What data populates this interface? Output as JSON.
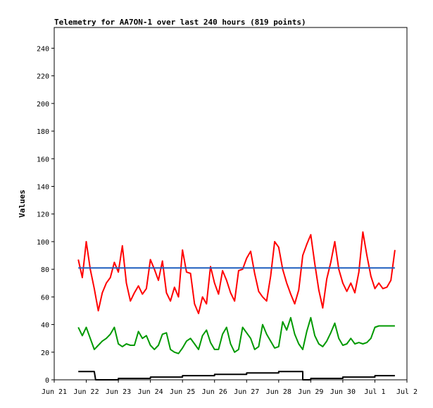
{
  "chart_data": {
    "type": "line",
    "title": "Telemetry for AA7ON-1 over last 240 hours (819 points)",
    "xlabel": "",
    "ylabel": "Values",
    "xlim": [
      "2024-06-21",
      "2024-07-02"
    ],
    "ylim": [
      0,
      255
    ],
    "x_ticks": [
      {
        "date": "2024-06-21",
        "label": "Jun 21"
      },
      {
        "date": "2024-06-22",
        "label": "Jun 22"
      },
      {
        "date": "2024-06-23",
        "label": "Jun 23"
      },
      {
        "date": "2024-06-24",
        "label": "Jun 24"
      },
      {
        "date": "2024-06-25",
        "label": "Jun 25"
      },
      {
        "date": "2024-06-26",
        "label": "Jun 26"
      },
      {
        "date": "2024-06-27",
        "label": "Jun 27"
      },
      {
        "date": "2024-06-28",
        "label": "Jun 28"
      },
      {
        "date": "2024-06-29",
        "label": "Jun 29"
      },
      {
        "date": "2024-06-30",
        "label": "Jun 30"
      },
      {
        "date": "2024-07-01",
        "label": "Jul 1"
      },
      {
        "date": "2024-07-02",
        "label": "Jul 2"
      }
    ],
    "y_ticks": [
      0,
      20,
      40,
      60,
      80,
      100,
      120,
      140,
      160,
      180,
      200,
      220,
      240
    ],
    "grid": false,
    "legend": "none",
    "series": [
      {
        "color": "#ff0000",
        "points": [
          [
            "2024-06-21T18:00",
            87
          ],
          [
            "2024-06-21T21:00",
            74
          ],
          [
            "2024-06-22T00:00",
            100
          ],
          [
            "2024-06-22T03:00",
            80
          ],
          [
            "2024-06-22T06:00",
            66
          ],
          [
            "2024-06-22T09:00",
            50
          ],
          [
            "2024-06-22T12:00",
            63
          ],
          [
            "2024-06-22T15:00",
            70
          ],
          [
            "2024-06-22T18:00",
            74
          ],
          [
            "2024-06-22T21:00",
            85
          ],
          [
            "2024-06-23T00:00",
            78
          ],
          [
            "2024-06-23T03:00",
            97
          ],
          [
            "2024-06-23T06:00",
            70
          ],
          [
            "2024-06-23T09:00",
            57
          ],
          [
            "2024-06-23T12:00",
            63
          ],
          [
            "2024-06-23T15:00",
            68
          ],
          [
            "2024-06-23T18:00",
            62
          ],
          [
            "2024-06-23T21:00",
            66
          ],
          [
            "2024-06-24T00:00",
            87
          ],
          [
            "2024-06-24T03:00",
            80
          ],
          [
            "2024-06-24T06:00",
            72
          ],
          [
            "2024-06-24T09:00",
            86
          ],
          [
            "2024-06-24T12:00",
            63
          ],
          [
            "2024-06-24T15:00",
            57
          ],
          [
            "2024-06-24T18:00",
            67
          ],
          [
            "2024-06-24T21:00",
            60
          ],
          [
            "2024-06-25T00:00",
            94
          ],
          [
            "2024-06-25T03:00",
            78
          ],
          [
            "2024-06-25T06:00",
            77
          ],
          [
            "2024-06-25T09:00",
            55
          ],
          [
            "2024-06-25T12:00",
            48
          ],
          [
            "2024-06-25T15:00",
            60
          ],
          [
            "2024-06-25T18:00",
            55
          ],
          [
            "2024-06-25T21:00",
            82
          ],
          [
            "2024-06-26T00:00",
            70
          ],
          [
            "2024-06-26T03:00",
            62
          ],
          [
            "2024-06-26T06:00",
            79
          ],
          [
            "2024-06-26T09:00",
            72
          ],
          [
            "2024-06-26T12:00",
            63
          ],
          [
            "2024-06-26T15:00",
            57
          ],
          [
            "2024-06-26T18:00",
            79
          ],
          [
            "2024-06-26T21:00",
            80
          ],
          [
            "2024-06-27T00:00",
            88
          ],
          [
            "2024-06-27T03:00",
            93
          ],
          [
            "2024-06-27T06:00",
            77
          ],
          [
            "2024-06-27T09:00",
            64
          ],
          [
            "2024-06-27T12:00",
            60
          ],
          [
            "2024-06-27T15:00",
            57
          ],
          [
            "2024-06-27T18:00",
            75
          ],
          [
            "2024-06-27T21:00",
            100
          ],
          [
            "2024-06-28T00:00",
            96
          ],
          [
            "2024-06-28T03:00",
            80
          ],
          [
            "2024-06-28T06:00",
            70
          ],
          [
            "2024-06-28T09:00",
            62
          ],
          [
            "2024-06-28T12:00",
            55
          ],
          [
            "2024-06-28T15:00",
            65
          ],
          [
            "2024-06-28T18:00",
            90
          ],
          [
            "2024-06-28T21:00",
            98
          ],
          [
            "2024-06-29T00:00",
            105
          ],
          [
            "2024-06-29T03:00",
            84
          ],
          [
            "2024-06-29T06:00",
            65
          ],
          [
            "2024-06-29T09:00",
            52
          ],
          [
            "2024-06-29T12:00",
            73
          ],
          [
            "2024-06-29T15:00",
            85
          ],
          [
            "2024-06-29T18:00",
            100
          ],
          [
            "2024-06-29T21:00",
            80
          ],
          [
            "2024-06-30T00:00",
            70
          ],
          [
            "2024-06-30T03:00",
            64
          ],
          [
            "2024-06-30T06:00",
            70
          ],
          [
            "2024-06-30T09:00",
            63
          ],
          [
            "2024-06-30T12:00",
            78
          ],
          [
            "2024-06-30T15:00",
            107
          ],
          [
            "2024-06-30T18:00",
            90
          ],
          [
            "2024-06-30T21:00",
            75
          ],
          [
            "2024-07-01T00:00",
            66
          ],
          [
            "2024-07-01T03:00",
            70
          ],
          [
            "2024-07-01T06:00",
            66
          ],
          [
            "2024-07-01T09:00",
            67
          ],
          [
            "2024-07-01T12:00",
            72
          ],
          [
            "2024-07-01T15:00",
            94
          ]
        ]
      },
      {
        "color": "#009900",
        "points": [
          [
            "2024-06-21T18:00",
            38
          ],
          [
            "2024-06-21T21:00",
            32
          ],
          [
            "2024-06-22T00:00",
            38
          ],
          [
            "2024-06-22T03:00",
            30
          ],
          [
            "2024-06-22T06:00",
            22
          ],
          [
            "2024-06-22T09:00",
            25
          ],
          [
            "2024-06-22T12:00",
            28
          ],
          [
            "2024-06-22T15:00",
            30
          ],
          [
            "2024-06-22T18:00",
            33
          ],
          [
            "2024-06-22T21:00",
            38
          ],
          [
            "2024-06-23T00:00",
            26
          ],
          [
            "2024-06-23T03:00",
            24
          ],
          [
            "2024-06-23T06:00",
            26
          ],
          [
            "2024-06-23T09:00",
            25
          ],
          [
            "2024-06-23T12:00",
            25
          ],
          [
            "2024-06-23T15:00",
            35
          ],
          [
            "2024-06-23T18:00",
            30
          ],
          [
            "2024-06-23T21:00",
            32
          ],
          [
            "2024-06-24T00:00",
            25
          ],
          [
            "2024-06-24T03:00",
            22
          ],
          [
            "2024-06-24T06:00",
            25
          ],
          [
            "2024-06-24T09:00",
            33
          ],
          [
            "2024-06-24T12:00",
            34
          ],
          [
            "2024-06-24T15:00",
            22
          ],
          [
            "2024-06-24T18:00",
            20
          ],
          [
            "2024-06-24T21:00",
            19
          ],
          [
            "2024-06-25T00:00",
            23
          ],
          [
            "2024-06-25T03:00",
            28
          ],
          [
            "2024-06-25T06:00",
            30
          ],
          [
            "2024-06-25T09:00",
            26
          ],
          [
            "2024-06-25T12:00",
            22
          ],
          [
            "2024-06-25T15:00",
            32
          ],
          [
            "2024-06-25T18:00",
            36
          ],
          [
            "2024-06-25T21:00",
            27
          ],
          [
            "2024-06-26T00:00",
            22
          ],
          [
            "2024-06-26T03:00",
            22
          ],
          [
            "2024-06-26T06:00",
            33
          ],
          [
            "2024-06-26T09:00",
            38
          ],
          [
            "2024-06-26T12:00",
            26
          ],
          [
            "2024-06-26T15:00",
            20
          ],
          [
            "2024-06-26T18:00",
            22
          ],
          [
            "2024-06-26T21:00",
            38
          ],
          [
            "2024-06-27T00:00",
            34
          ],
          [
            "2024-06-27T03:00",
            30
          ],
          [
            "2024-06-27T06:00",
            22
          ],
          [
            "2024-06-27T09:00",
            24
          ],
          [
            "2024-06-27T12:00",
            40
          ],
          [
            "2024-06-27T15:00",
            33
          ],
          [
            "2024-06-27T18:00",
            28
          ],
          [
            "2024-06-27T21:00",
            23
          ],
          [
            "2024-06-28T00:00",
            24
          ],
          [
            "2024-06-28T03:00",
            42
          ],
          [
            "2024-06-28T06:00",
            36
          ],
          [
            "2024-06-28T09:00",
            45
          ],
          [
            "2024-06-28T12:00",
            33
          ],
          [
            "2024-06-28T15:00",
            26
          ],
          [
            "2024-06-28T18:00",
            22
          ],
          [
            "2024-06-28T21:00",
            35
          ],
          [
            "2024-06-29T00:00",
            45
          ],
          [
            "2024-06-29T03:00",
            32
          ],
          [
            "2024-06-29T06:00",
            26
          ],
          [
            "2024-06-29T09:00",
            24
          ],
          [
            "2024-06-29T12:00",
            28
          ],
          [
            "2024-06-29T15:00",
            34
          ],
          [
            "2024-06-29T18:00",
            41
          ],
          [
            "2024-06-29T21:00",
            30
          ],
          [
            "2024-06-30T00:00",
            25
          ],
          [
            "2024-06-30T03:00",
            26
          ],
          [
            "2024-06-30T06:00",
            30
          ],
          [
            "2024-06-30T09:00",
            26
          ],
          [
            "2024-06-30T12:00",
            27
          ],
          [
            "2024-06-30T15:00",
            26
          ],
          [
            "2024-06-30T18:00",
            27
          ],
          [
            "2024-06-30T21:00",
            30
          ],
          [
            "2024-07-01T00:00",
            38
          ],
          [
            "2024-07-01T03:00",
            39
          ],
          [
            "2024-07-01T06:00",
            39
          ],
          [
            "2024-07-01T09:00",
            39
          ],
          [
            "2024-07-01T12:00",
            39
          ],
          [
            "2024-07-01T15:00",
            39
          ]
        ]
      },
      {
        "color": "#1f5fbf",
        "points": [
          [
            "2024-06-21T18:00",
            81
          ],
          [
            "2024-07-01T15:00",
            81
          ]
        ]
      },
      {
        "color": "#000000",
        "points": [
          [
            "2024-06-21T18:00",
            6
          ],
          [
            "2024-06-22T06:00",
            6
          ],
          [
            "2024-06-22T07:00",
            0
          ],
          [
            "2024-06-23T00:00",
            0
          ],
          [
            "2024-06-23T00:01",
            1
          ],
          [
            "2024-06-24T00:00",
            1
          ],
          [
            "2024-06-24T00:01",
            2
          ],
          [
            "2024-06-25T00:00",
            2
          ],
          [
            "2024-06-25T00:01",
            3
          ],
          [
            "2024-06-26T00:00",
            3
          ],
          [
            "2024-06-26T00:01",
            4
          ],
          [
            "2024-06-27T00:00",
            4
          ],
          [
            "2024-06-27T00:01",
            5
          ],
          [
            "2024-06-28T00:00",
            5
          ],
          [
            "2024-06-28T00:01",
            6
          ],
          [
            "2024-06-28T18:00",
            6
          ],
          [
            "2024-06-28T18:01",
            0
          ],
          [
            "2024-06-29T00:00",
            0
          ],
          [
            "2024-06-29T00:01",
            1
          ],
          [
            "2024-06-30T00:00",
            1
          ],
          [
            "2024-06-30T00:01",
            2
          ],
          [
            "2024-07-01T00:00",
            2
          ],
          [
            "2024-07-01T00:01",
            3
          ],
          [
            "2024-07-01T15:00",
            3
          ]
        ]
      }
    ]
  }
}
